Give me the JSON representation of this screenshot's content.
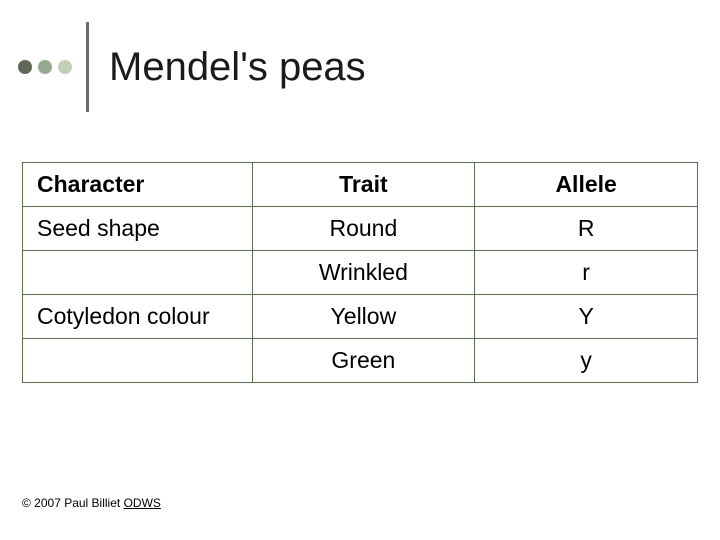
{
  "title": "Mendel's peas",
  "bullet_colors": [
    "#606858",
    "#96a890",
    "#c0d0b8"
  ],
  "vline_color": "#687068",
  "table": {
    "border_color": "#5a7050",
    "columns": [
      "Character",
      "Trait",
      "Allele"
    ],
    "rows": [
      [
        "Seed shape",
        "Round",
        "R"
      ],
      [
        "",
        "Wrinkled",
        "r"
      ],
      [
        "Cotyledon colour",
        "Yellow",
        "Y"
      ],
      [
        "",
        "Green",
        "y"
      ]
    ],
    "col_align": [
      "left",
      "center",
      "center"
    ],
    "header_fontweight": 700,
    "cell_fontsize": 23
  },
  "footer": {
    "prefix": "© 2007 Paul Billiet ",
    "link_text": "ODWS"
  }
}
